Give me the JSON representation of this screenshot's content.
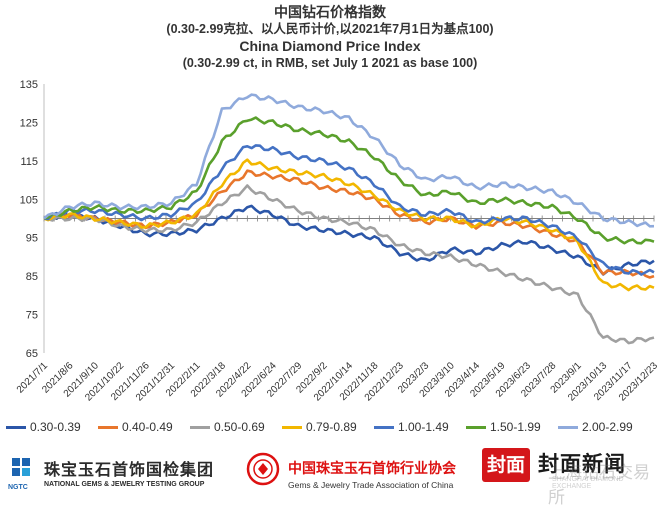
{
  "titles": {
    "cn": "中国钻石价格指数",
    "cn_sub": "(0.30-2.99克拉、以人民币计价,以2021年7月1日为基点100)",
    "en": "China Diamond Price Index",
    "en_sub": "(0.30-2.99 ct, in RMB, set July 1 2021 as base 100)"
  },
  "chart_data": {
    "type": "line",
    "ylim": [
      65,
      135
    ],
    "yticks": [
      65,
      75,
      85,
      95,
      105,
      115,
      125,
      135
    ],
    "baseline": 100,
    "grid": false,
    "legend_position": "bottom",
    "xtick_labels": [
      "2021/7/1",
      "2021/8/6",
      "2021/9/10",
      "2021/10/22",
      "2021/11/26",
      "2021/12/31",
      "2022/2/11",
      "2022/3/18",
      "2022/4/22",
      "2022/6/24",
      "2022/7/29",
      "2022/9/2",
      "2022/10/14",
      "2022/11/18",
      "2022/12/23",
      "2023/2/3",
      "2023/3/10",
      "2023/4/14",
      "2023/5/19",
      "2023/6/23",
      "2023/7/28",
      "2023/9/1",
      "2023/10/13",
      "2023/11/17",
      "2023/12/23"
    ],
    "series": [
      {
        "name": "0.30-0.39",
        "color": "#2b56a8",
        "values": [
          100,
          101,
          100,
          98,
          96,
          96,
          97,
          100,
          103,
          101,
          98,
          97,
          96,
          95,
          91,
          89,
          92,
          91,
          93,
          94,
          92,
          90,
          86,
          88,
          89
        ]
      },
      {
        "name": "0.40-0.49",
        "color": "#e8762c",
        "values": [
          100,
          101,
          100,
          99,
          98,
          99,
          101,
          107,
          112,
          111,
          110,
          108,
          107,
          105,
          101,
          99,
          100,
          98,
          99,
          98,
          96,
          94,
          86,
          86,
          85
        ]
      },
      {
        "name": "0.50-0.69",
        "color": "#a0a0a0",
        "values": [
          100,
          100,
          100,
          98,
          97,
          97,
          99,
          104,
          108,
          105,
          102,
          100,
          99,
          97,
          93,
          91,
          90,
          88,
          86,
          84,
          82,
          80,
          69,
          68,
          69
        ]
      },
      {
        "name": "0.79-0.89",
        "color": "#f2b700",
        "values": [
          100,
          101,
          100,
          99,
          98,
          99,
          101,
          109,
          115,
          113,
          112,
          111,
          109,
          106,
          102,
          100,
          100,
          98,
          100,
          99,
          97,
          94,
          83,
          82,
          82
        ]
      },
      {
        "name": "1.00-1.49",
        "color": "#4472c4",
        "values": [
          100,
          102,
          102,
          101,
          100,
          101,
          104,
          113,
          119,
          118,
          116,
          115,
          113,
          109,
          103,
          101,
          102,
          99,
          100,
          100,
          98,
          95,
          88,
          86,
          86
        ]
      },
      {
        "name": "1.50-1.99",
        "color": "#5aa02c",
        "values": [
          100,
          102,
          103,
          102,
          102,
          103,
          107,
          120,
          126,
          125,
          123,
          122,
          120,
          116,
          110,
          106,
          107,
          104,
          105,
          104,
          103,
          100,
          95,
          94,
          94
        ]
      },
      {
        "name": "2.00-2.99",
        "color": "#8faadc",
        "values": [
          100,
          103,
          104,
          103,
          103,
          104,
          109,
          128,
          132,
          131,
          129,
          128,
          126,
          121,
          114,
          110,
          111,
          108,
          109,
          108,
          107,
          104,
          100,
          99,
          98
        ]
      }
    ]
  },
  "legend": {
    "items": [
      "0.30-0.39",
      "0.40-0.49",
      "0.50-0.69",
      "0.79-0.89",
      "1.00-1.49",
      "1.50-1.99",
      "2.00-2.99"
    ]
  },
  "footer": {
    "ngtc_cn": "珠宝玉石首饰国检集团",
    "ngtc_en": "NATIONAL GEMS & JEWELRY TESTING GROUP",
    "ngtc_abbr": "NGTC",
    "gac_cn": "中国珠宝玉石首饰行业协会",
    "gac_en": "Gems & Jewelry Trade Association of China",
    "fm_box": "封面",
    "fm_name": "封面新闻",
    "watermark_cn": "上海钻石交易所",
    "watermark_en": "SHANGHAI DIAMOND EXCHANGE"
  }
}
